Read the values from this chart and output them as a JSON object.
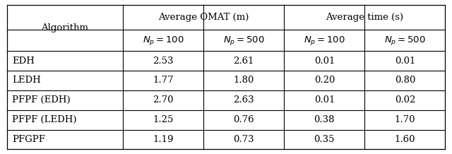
{
  "col_headers_top": [
    "",
    "Average OMAT (m)",
    "Average time (s)"
  ],
  "col_headers_sub": [
    "Algorithm",
    "$N_p = 100$",
    "$N_p = 500$",
    "$N_p = 100$",
    "$N_p = 500$"
  ],
  "rows": [
    [
      "EDH",
      "2.53",
      "2.61",
      "0.01",
      "0.01"
    ],
    [
      "LEDH",
      "1.77",
      "1.80",
      "0.20",
      "0.80"
    ],
    [
      "PFPF (EDH)",
      "2.70",
      "2.63",
      "0.01",
      "0.02"
    ],
    [
      "PFPF (LEDH)",
      "1.25",
      "0.76",
      "0.38",
      "1.70"
    ],
    [
      "PFGPF",
      "1.19",
      "0.73",
      "0.35",
      "1.60"
    ]
  ],
  "background_color": "#ffffff",
  "line_color": "#000000",
  "font_size": 9.5,
  "header_font_size": 9.5,
  "figwidth": 6.4,
  "figheight": 2.18,
  "dpi": 100
}
